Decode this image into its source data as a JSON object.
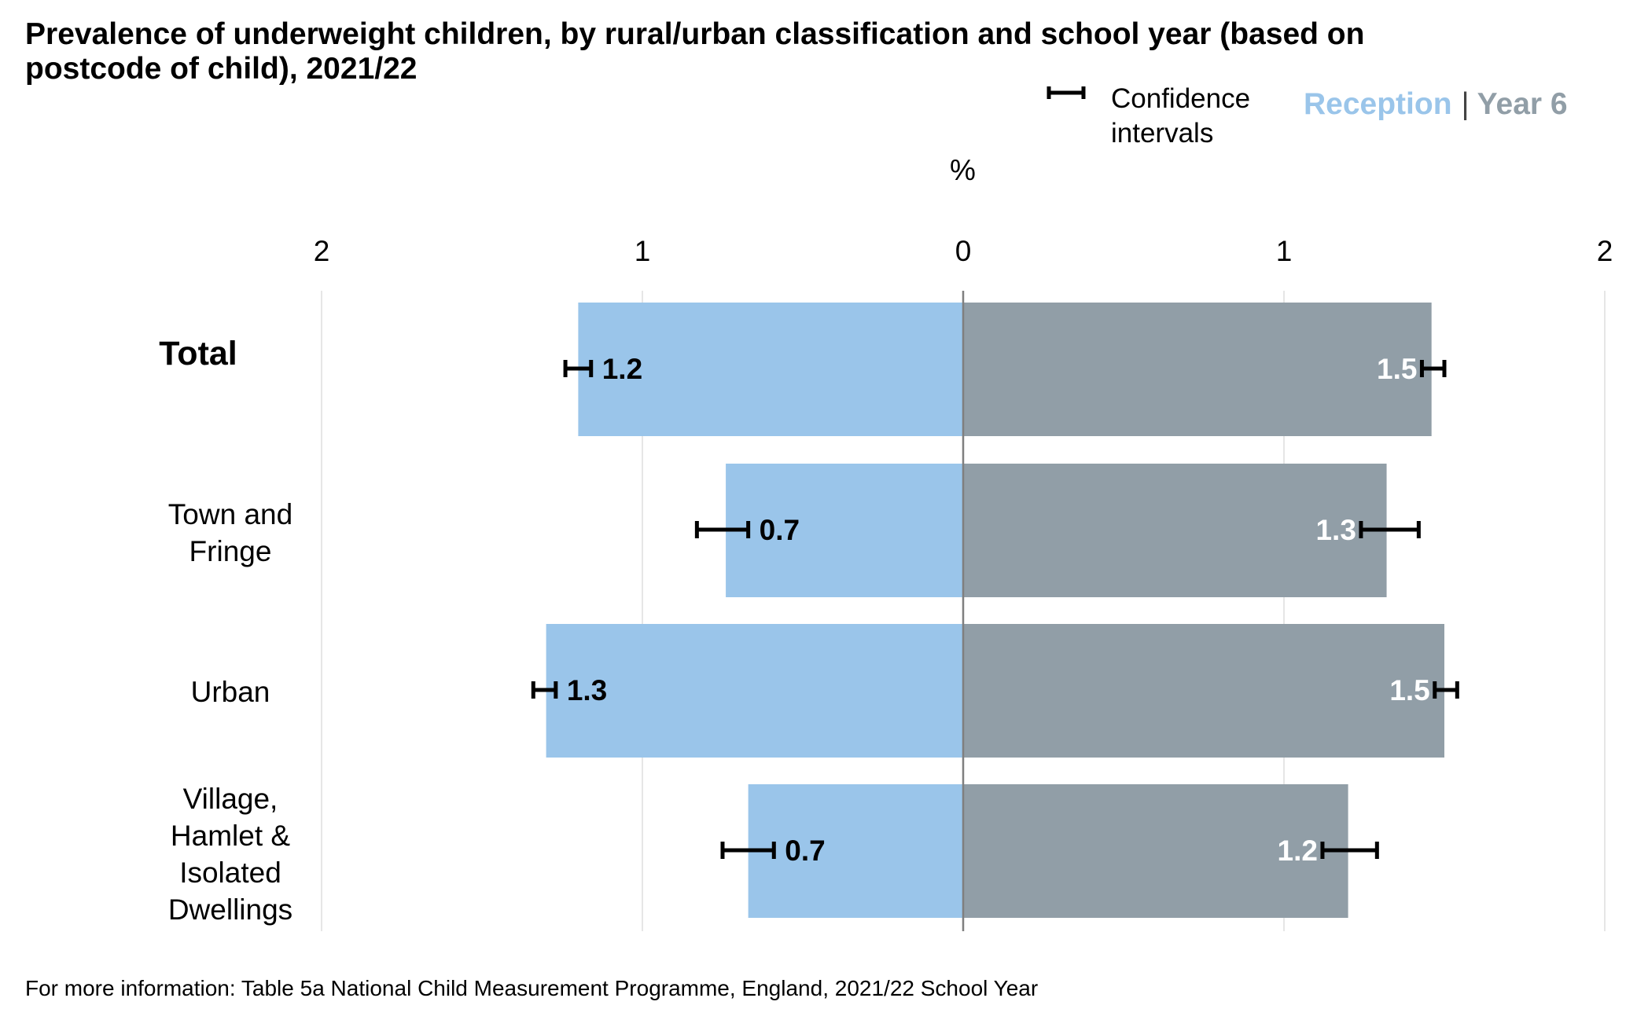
{
  "title": "Prevalence of underweight children, by rural/urban classification and school year (based on postcode of child), 2021/22",
  "legend": {
    "ci_label": "Confidence intervals",
    "reception_label": "Reception",
    "separator": "|",
    "year6_label": "Year 6"
  },
  "unit_label": "%",
  "footer": "For more information: Table 5a National Child Measurement Programme, England, 2021/22 School Year",
  "colors": {
    "reception": "#9ac5ea",
    "year6": "#919ea7",
    "axis": "#7f7f7f",
    "grid": "#e6e6e6",
    "error_bar": "#000000"
  },
  "chart_data": {
    "type": "bar",
    "orientation": "horizontal-diverging",
    "categories": [
      "Total",
      "Town and Fringe",
      "Urban",
      "Village, Hamlet & Isolated Dwellings"
    ],
    "xlabel": "%",
    "x_ticks": [
      "2",
      "1",
      "0",
      "1",
      "2"
    ],
    "xlim": [
      -2,
      2
    ],
    "grid": true,
    "legend_position": "top-right",
    "series": [
      {
        "name": "Reception",
        "side": "left",
        "values": [
          1.2,
          0.74,
          1.3,
          0.67
        ],
        "labels": [
          "1.2",
          "0.7",
          "1.3",
          "0.7"
        ],
        "ci_low": [
          1.16,
          0.67,
          1.27,
          0.59
        ],
        "ci_high": [
          1.24,
          0.83,
          1.34,
          0.75
        ]
      },
      {
        "name": "Year 6",
        "side": "right",
        "values": [
          1.46,
          1.32,
          1.5,
          1.2
        ],
        "labels": [
          "1.5",
          "1.3",
          "1.5",
          "1.2"
        ],
        "ci_low": [
          1.43,
          1.24,
          1.47,
          1.12
        ],
        "ci_high": [
          1.5,
          1.42,
          1.54,
          1.29
        ]
      }
    ]
  }
}
